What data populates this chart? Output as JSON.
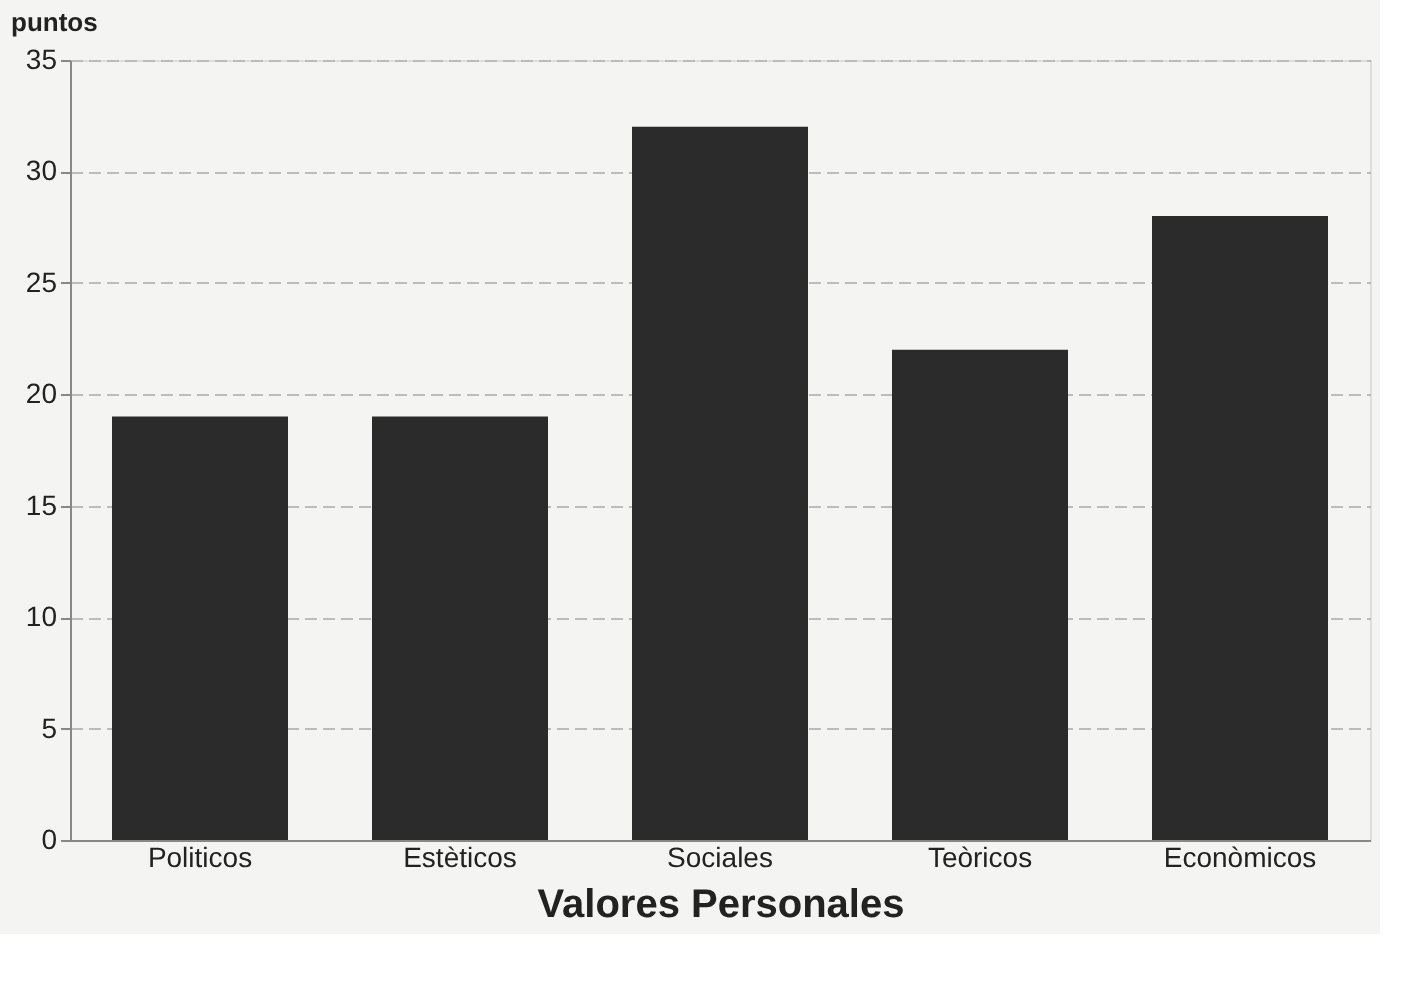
{
  "chart_data": {
    "type": "bar",
    "xlabel": "Valores Personales",
    "ylabel": "puntos",
    "categories": [
      "Politicos",
      "Estèticos",
      "Sociales",
      "Teòricos",
      "Econòmicos"
    ],
    "values": [
      19,
      19,
      32,
      22,
      28
    ],
    "color": "#2b2b2b",
    "ylim": [
      0,
      35
    ],
    "yticks": [
      0,
      5,
      10,
      15,
      20,
      25,
      30,
      35
    ],
    "grid": "y"
  }
}
